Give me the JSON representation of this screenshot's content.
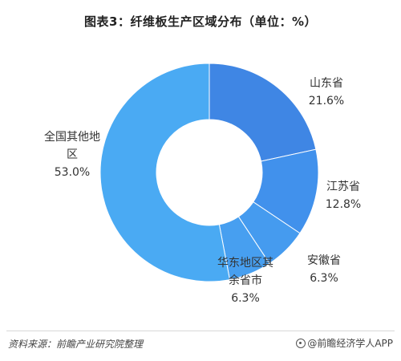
{
  "title": "图表3：纤维板生产区域分布（单位：%）",
  "chart_data": {
    "type": "pie",
    "title": "图表3：纤维板生产区域分布（单位：%）",
    "donut": true,
    "slices": [
      {
        "label_lines": [
          "山东省"
        ],
        "value": 21.6,
        "value_text": "21.6%",
        "color": "#3F86E4"
      },
      {
        "label_lines": [
          "江苏省"
        ],
        "value": 12.8,
        "value_text": "12.8%",
        "color": "#4191EC"
      },
      {
        "label_lines": [
          "安徽省"
        ],
        "value": 6.3,
        "value_text": "6.3%",
        "color": "#459BEF"
      },
      {
        "label_lines": [
          "华东地区其",
          "余省市"
        ],
        "value": 6.3,
        "value_text": "6.3%",
        "color": "#479FF0"
      },
      {
        "label_lines": [
          "全国其他地",
          "区"
        ],
        "value": 53.0,
        "value_text": "53.0%",
        "color": "#4AAAF3"
      }
    ]
  },
  "footer": {
    "source": "资料来源：前瞻产业研究院整理",
    "brand": "@前瞻经济学人APP"
  }
}
